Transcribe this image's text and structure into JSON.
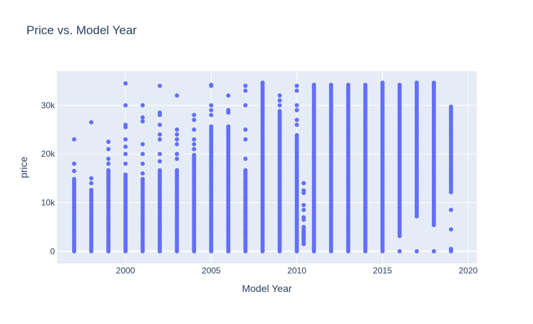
{
  "chart_data": {
    "type": "scatter",
    "title": "Price vs. Model Year",
    "xlabel": "Model Year",
    "ylabel": "price",
    "xlim": [
      1996.0,
      2020.5
    ],
    "ylim": [
      -2500,
      37000
    ],
    "x_ticks": [
      2000,
      2005,
      2010,
      2015,
      2020
    ],
    "x_tick_labels": [
      "2000",
      "2005",
      "2010",
      "2015",
      "2020"
    ],
    "y_ticks": [
      0,
      10000,
      20000,
      30000
    ],
    "y_tick_labels": [
      "0",
      "10k",
      "20k",
      "30k"
    ],
    "grid": true,
    "legend": "none",
    "marker_color": "#636efa",
    "background_color": "#e5ecf6",
    "series": [
      {
        "x": [
          1997,
          1998,
          1999,
          2000,
          2001,
          2002,
          2003,
          2004,
          2005,
          2006,
          2007,
          2008,
          2009,
          2010,
          2010.4,
          2011,
          2012,
          2013,
          2014,
          2015,
          2016,
          2017,
          2018,
          2019
        ],
        "y_min": [
          0,
          0,
          0,
          0,
          0,
          0,
          0,
          0,
          0,
          0,
          0,
          0,
          0,
          0,
          1500,
          0,
          0,
          0,
          0,
          0,
          0,
          0,
          0,
          0
        ],
        "y_dense_max": [
          15000,
          13000,
          17000,
          16000,
          15000,
          17000,
          17000,
          20000,
          26000,
          26000,
          29000,
          34800,
          29000,
          24000,
          5000,
          34600,
          34600,
          34600,
          34200,
          34700,
          34600,
          34700,
          34700,
          30000
        ],
        "y_outliers": [
          [
            23000,
            18000,
            16500
          ],
          [
            26500,
            15000,
            14000
          ],
          [
            22500,
            21000,
            19000,
            18000
          ],
          [
            34500,
            30000,
            26000,
            25500,
            23000,
            21500,
            20000,
            18000
          ],
          [
            30000,
            27500,
            26700,
            22000,
            20000,
            18000,
            16000
          ],
          [
            34000,
            28500,
            28000,
            26000,
            24000,
            23000,
            20000,
            18500
          ],
          [
            32000,
            25000,
            24000,
            23000,
            22000,
            20000,
            19000
          ],
          [
            28000,
            27000,
            25000,
            23000,
            22000,
            21000
          ],
          [
            34200,
            34000,
            30000,
            29000,
            28000
          ],
          [
            32000,
            29000,
            28500
          ],
          [
            34000,
            33000,
            30000,
            25000,
            23000,
            19000,
            16000,
            14000,
            13000,
            11000,
            9000,
            8000,
            6500,
            5500,
            4000
          ],
          [],
          [
            32000,
            31000,
            30000
          ],
          [
            34000,
            33000,
            30000,
            29000,
            27000,
            26000
          ],
          [
            14000,
            12500,
            12000,
            9500,
            8500,
            7000,
            6500,
            5000,
            4000,
            3500,
            3000,
            2500,
            1500
          ],
          [],
          [],
          [],
          [],
          [],
          [],
          [],
          [],
          [
            8500,
            4500,
            500,
            200
          ]
        ],
        "y_dense_gaps": [
          [],
          [],
          [],
          [],
          [],
          [],
          [],
          [],
          [],
          [],
          [
            [
              17000,
              34000
            ]
          ],
          [],
          [],
          [],
          [],
          [],
          [],
          [],
          [],
          [],
          [
            [
              0,
              3000
            ]
          ],
          [
            [
              0,
              7000
            ]
          ],
          [
            [
              0,
              5000
            ]
          ],
          [
            [
              0,
              12000
            ]
          ]
        ]
      }
    ]
  }
}
